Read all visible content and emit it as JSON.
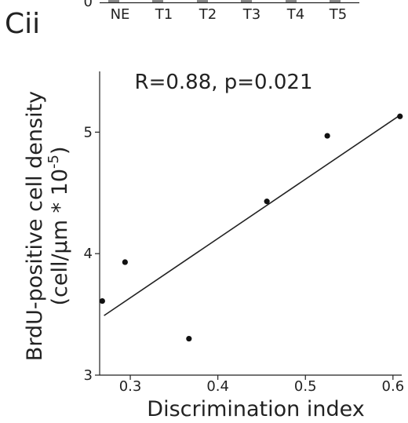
{
  "panel_label": "Cii",
  "top_panel": {
    "zero_label": "0",
    "categories": [
      "NE",
      "T1",
      "T2",
      "T3",
      "T4",
      "T5"
    ],
    "bar_color": "#888888"
  },
  "chart_data": {
    "type": "scatter",
    "title": "",
    "annotation": "R=0.88, p=0.021",
    "xlabel": "Discrimination index",
    "ylabel_line1": "BrdU-positive cell density",
    "ylabel_line2_prefix": "(cell/μm * 10",
    "ylabel_line2_exponent": "-5",
    "ylabel_line2_suffix": ")",
    "xlim": [
      0.265,
      0.61
    ],
    "ylim": [
      3.0,
      5.5
    ],
    "x_ticks": [
      0.3,
      0.4,
      0.5,
      0.6
    ],
    "x_tick_labels": [
      "0.3",
      "0.4",
      "0.5",
      "0.6"
    ],
    "y_ticks": [
      3,
      4,
      5
    ],
    "y_tick_labels": [
      "3",
      "4",
      "5"
    ],
    "points": [
      {
        "x": 0.268,
        "y": 3.61
      },
      {
        "x": 0.294,
        "y": 3.93
      },
      {
        "x": 0.367,
        "y": 3.3
      },
      {
        "x": 0.456,
        "y": 4.43
      },
      {
        "x": 0.525,
        "y": 4.97
      },
      {
        "x": 0.608,
        "y": 5.13
      }
    ],
    "fit_line": {
      "x0": 0.27,
      "y0": 3.49,
      "x1": 0.606,
      "y1": 5.13
    },
    "grid": false,
    "point_color": "#111111",
    "line_color": "#222222"
  }
}
